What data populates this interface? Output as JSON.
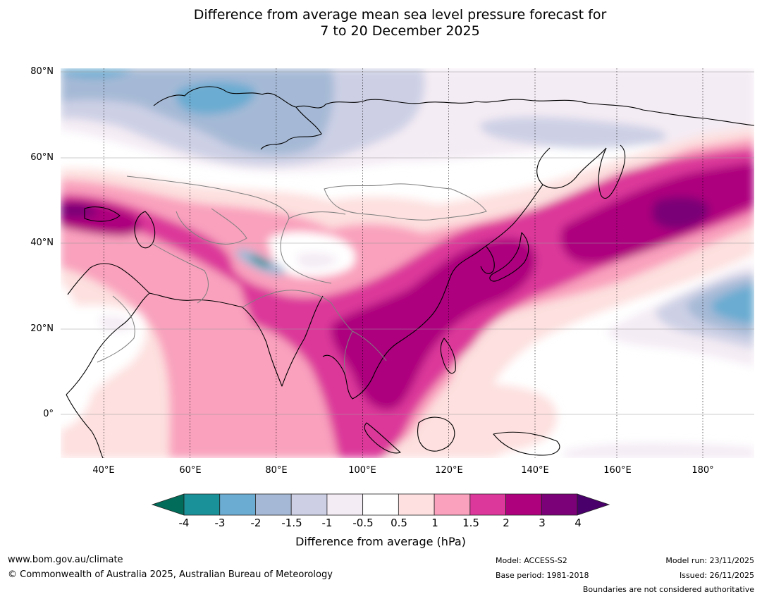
{
  "title": {
    "line1": "Difference from average mean sea level pressure forecast for",
    "line2": "7 to 20 December 2025"
  },
  "map": {
    "region": "Asia, Indian Ocean and north-west Pacific",
    "lat_labels": [
      "80°N",
      "60°N",
      "40°N",
      "20°N",
      "0°"
    ],
    "lat_values": [
      80,
      60,
      40,
      20,
      0
    ],
    "lon_labels": [
      "40°E",
      "60°E",
      "80°E",
      "100°E",
      "120°E",
      "140°E",
      "160°E",
      "180°"
    ],
    "lon_values": [
      40,
      60,
      80,
      100,
      120,
      140,
      160,
      180
    ],
    "extent": {
      "lon_min": 30,
      "lon_max": 191,
      "lat_min": -10,
      "lat_max": 81
    }
  },
  "colorbar": {
    "ticks": [
      "-4",
      "-3",
      "-2",
      "-1.5",
      "-1",
      "-0.5",
      "0.5",
      "1",
      "1.5",
      "2",
      "3",
      "4"
    ],
    "colors": [
      "#1a9098",
      "#6aacd2",
      "#a5b9d6",
      "#cdd0e5",
      "#f4ecf4",
      "#ffffff",
      "#fde0df",
      "#f9a1bd",
      "#dc379a",
      "#ad017e",
      "#7a0177"
    ],
    "under_color": "#016c59",
    "over_color": "#49006a",
    "label": "Difference from average (hPa)"
  },
  "footer": {
    "website": "www.bom.gov.au/climate",
    "copyright": "© Commonwealth of Australia 2025, Australian Bureau of Meteorology",
    "model": "Model: ACCESS-S2",
    "base_period": "Base period: 1981-2018",
    "model_run": "Model run: 23/11/2025",
    "issued": "Issued: 26/11/2025",
    "disclaimer": "Boundaries are not considered authoritative"
  }
}
